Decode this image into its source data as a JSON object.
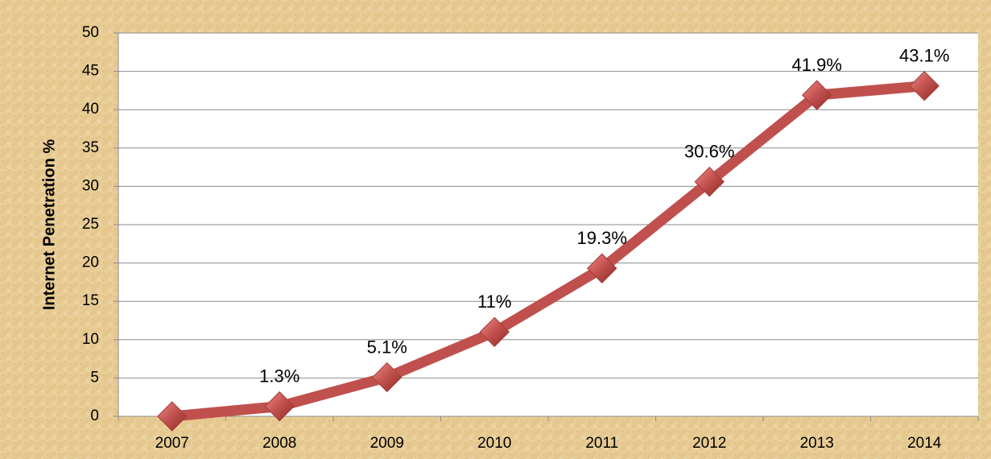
{
  "chart_data": {
    "type": "line",
    "y_label": "Internet Penetration %",
    "categories": [
      "2007",
      "2008",
      "2009",
      "2010",
      "2011",
      "2012",
      "2013",
      "2014"
    ],
    "series": [
      {
        "name": "Internet Penetration",
        "color": "#c0504d",
        "values": [
          0,
          1.3,
          5.1,
          11,
          19.3,
          30.6,
          41.9,
          43.1
        ],
        "value_labels": [
          null,
          "1.3%",
          "5.1%",
          "11%",
          "19.3%",
          "30.6%",
          "41.9%",
          "43.1%"
        ]
      }
    ],
    "ylim": [
      0,
      50
    ],
    "yticks": [
      0,
      5,
      10,
      15,
      20,
      25,
      30,
      35,
      40,
      45,
      50
    ],
    "grid": true
  }
}
